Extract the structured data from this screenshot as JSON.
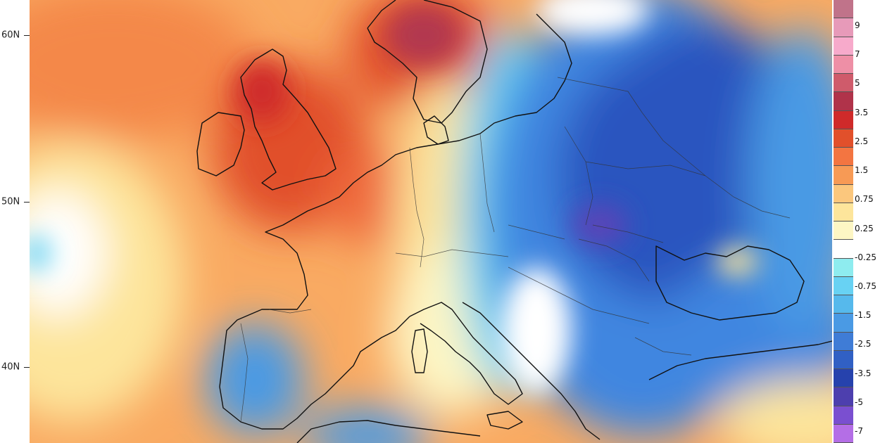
{
  "map": {
    "lat_labels": [
      "60N",
      "50N",
      "40N"
    ],
    "colorbar": {
      "labels": [
        "9",
        "7",
        "5",
        "3.5",
        "2.5",
        "1.5",
        "0.75",
        "0.25",
        "-0.25",
        "-0.75",
        "-1.5",
        "-2.5",
        "-3.5",
        "-5",
        "-7"
      ],
      "colors": [
        "#c0738a",
        "#e79ab9",
        "#f7aacb",
        "#ee8fa6",
        "#cf5b6b",
        "#b0334a",
        "#cf2a2a",
        "#e1502b",
        "#f37541",
        "#f79a55",
        "#fbc77d",
        "#fde59b",
        "#fdf6c4",
        "#ffffff",
        "#8eecef",
        "#68d2f3",
        "#56b9ec",
        "#4a9ae4",
        "#3f7cd6",
        "#3160c4",
        "#2642ad",
        "#4d3fae",
        "#7a4fd0",
        "#b46ee6"
      ]
    },
    "field_colors": {
      "warm_strong": "#b2374f",
      "warm": "#e1502b",
      "orange": "#f4884a",
      "light_orange": "#f9aa62",
      "yellow": "#fde59b",
      "neutral": "#ffffff",
      "cyan": "#68d2f3",
      "blue": "#3f86e0",
      "dark_blue": "#2a55bf",
      "purple": "#5a45b8"
    }
  }
}
